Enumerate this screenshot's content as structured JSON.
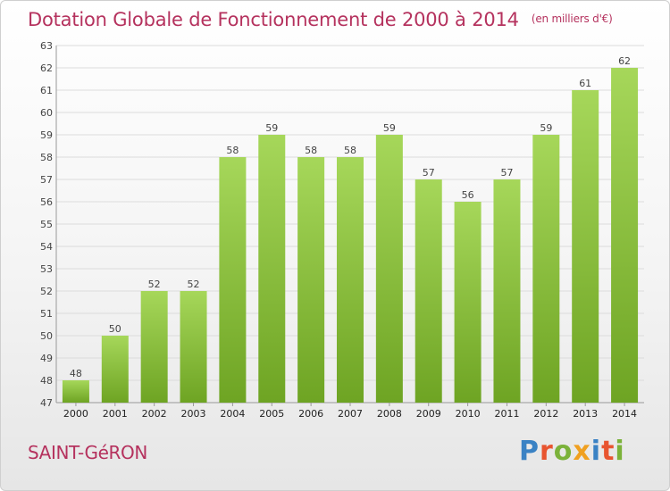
{
  "header": {
    "title": "Dotation Globale de Fonctionnement de 2000 à 2014",
    "unit": "(en milliers d'€)"
  },
  "footer": {
    "town": "SAINT-GéRON",
    "logo_text": "Proxiti",
    "logo_colors": [
      "#3a82c4",
      "#e8542f",
      "#7bb23a",
      "#f0a020",
      "#3a82c4",
      "#e8542f",
      "#7bb23a"
    ]
  },
  "colors": {
    "title": "#b5325e",
    "bar_light": "#a6d75a",
    "bar_dark": "#6ea423",
    "grid": "#dcdcdc",
    "axis_text": "#444444"
  },
  "chart_data": {
    "type": "bar",
    "title": "Dotation Globale de Fonctionnement de 2000 à 2014",
    "subtitle": "(en milliers d'€)",
    "xlabel": "",
    "ylabel": "",
    "ylim": [
      47,
      63
    ],
    "grid": true,
    "categories": [
      "2000",
      "2001",
      "2002",
      "2003",
      "2004",
      "2005",
      "2006",
      "2007",
      "2008",
      "2009",
      "2010",
      "2011",
      "2012",
      "2013",
      "2014"
    ],
    "values": [
      48,
      50,
      52,
      52,
      58,
      59,
      58,
      58,
      59,
      57,
      56,
      57,
      59,
      61,
      62
    ],
    "y_ticks": [
      47,
      48,
      49,
      50,
      51,
      52,
      53,
      54,
      55,
      56,
      57,
      58,
      59,
      60,
      61,
      62,
      63
    ]
  }
}
